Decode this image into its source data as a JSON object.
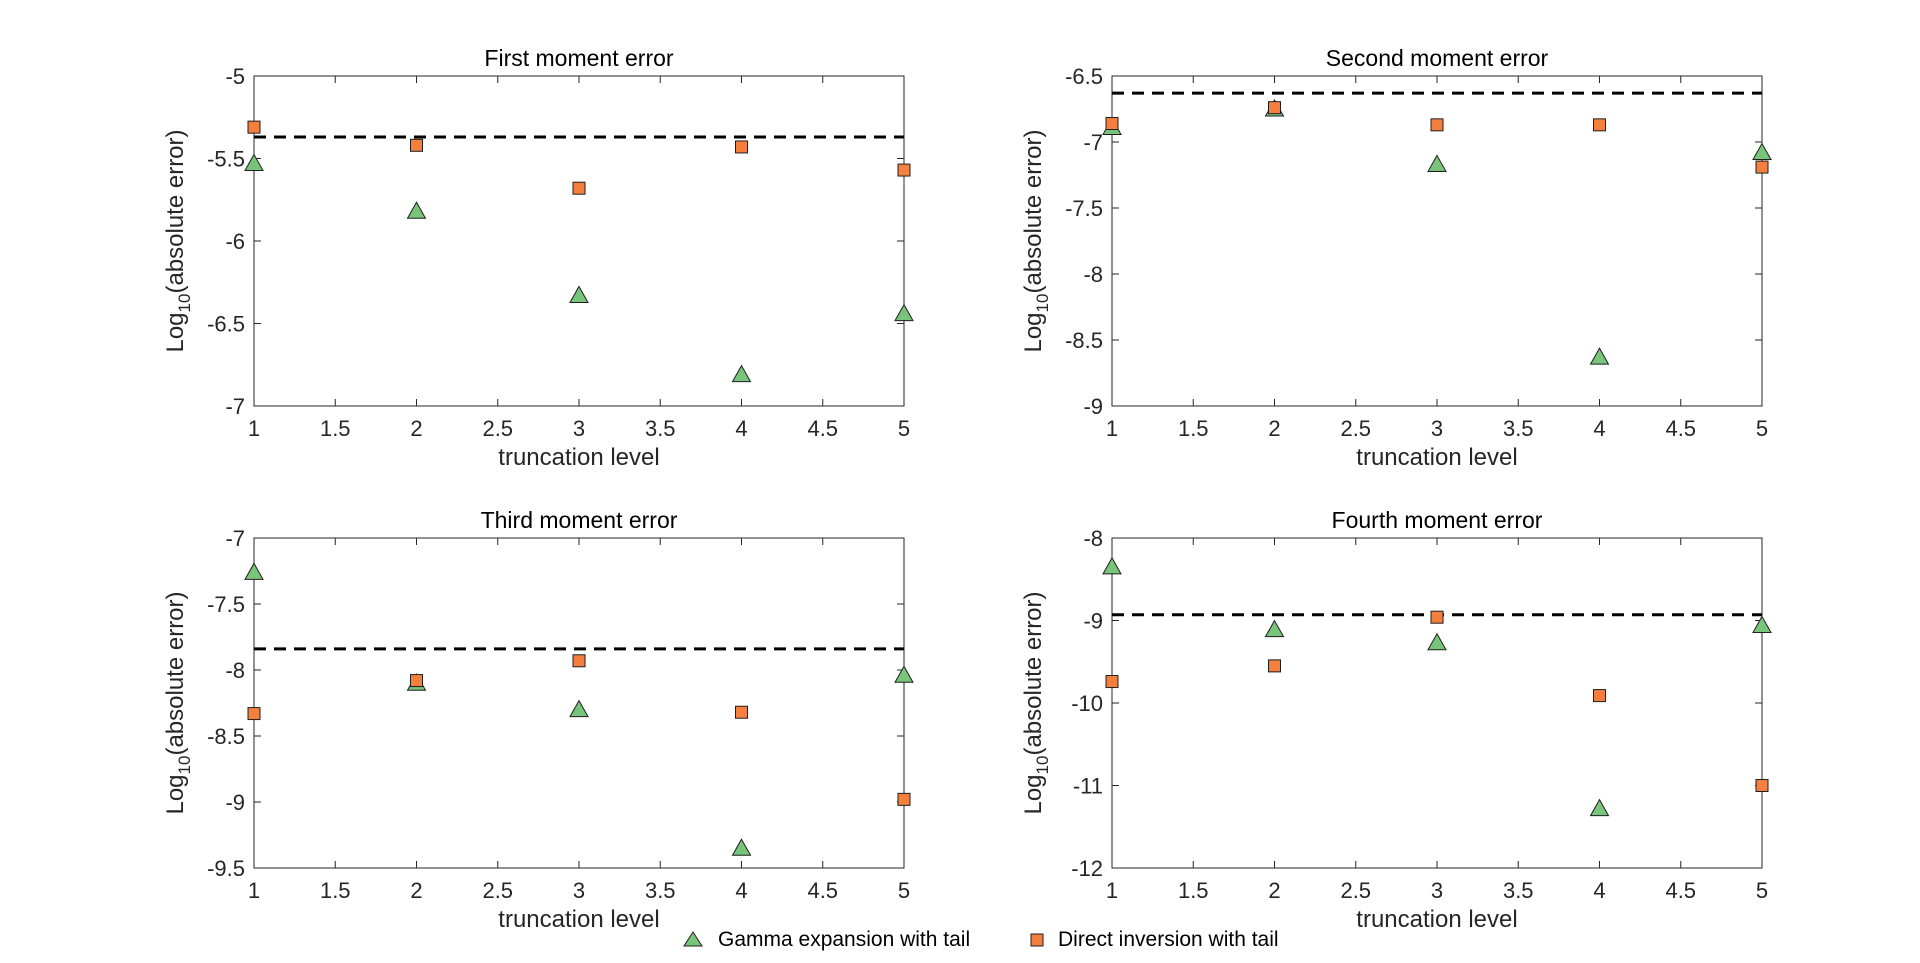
{
  "figure": {
    "legend": {
      "position": "bottom-center",
      "entries": [
        {
          "label": "Gamma expansion with tail",
          "marker": "triangle",
          "color": "#77c47a"
        },
        {
          "label": "Direct inversion with tail",
          "marker": "square",
          "color": "#f5803e"
        }
      ]
    }
  },
  "chart_data": [
    {
      "type": "scatter",
      "title": "First moment error",
      "xlabel": "truncation level",
      "ylabel_prefix": "Log",
      "ylabel_sub": "10",
      "ylabel_suffix": "(absolute error)",
      "xlim": [
        1,
        5
      ],
      "ylim": [
        -7,
        -5
      ],
      "xticks": [
        1,
        1.5,
        2,
        2.5,
        3,
        3.5,
        4,
        4.5,
        5
      ],
      "xtick_labels": [
        "1",
        "1.5",
        "2",
        "2.5",
        "3",
        "3.5",
        "4",
        "4.5",
        "5"
      ],
      "yticks": [
        -7,
        -6.5,
        -6,
        -5.5,
        -5
      ],
      "ytick_labels": [
        "-7",
        "-6.5",
        "-6",
        "-5.5",
        "-5"
      ],
      "reference_line": -5.37,
      "x": [
        1,
        2,
        3,
        4,
        5
      ],
      "series": [
        {
          "name": "Gamma expansion with tail",
          "marker": "triangle",
          "color": "#77c47a",
          "values": [
            -5.53,
            -5.82,
            -6.33,
            -6.81,
            -6.44
          ]
        },
        {
          "name": "Direct inversion with tail",
          "marker": "square",
          "color": "#f5803e",
          "values": [
            -5.31,
            -5.42,
            -5.68,
            -5.43,
            -5.57
          ]
        }
      ]
    },
    {
      "type": "scatter",
      "title": "Second moment error",
      "xlabel": "truncation level",
      "ylabel_prefix": "Log",
      "ylabel_sub": "10",
      "ylabel_suffix": "(absolute error)",
      "xlim": [
        1,
        5
      ],
      "ylim": [
        -9,
        -6.5
      ],
      "xticks": [
        1,
        1.5,
        2,
        2.5,
        3,
        3.5,
        4,
        4.5,
        5
      ],
      "xtick_labels": [
        "1",
        "1.5",
        "2",
        "2.5",
        "3",
        "3.5",
        "4",
        "4.5",
        "5"
      ],
      "yticks": [
        -9,
        -8.5,
        -8,
        -7.5,
        -7,
        -6.5
      ],
      "ytick_labels": [
        "-9",
        "-8.5",
        "-8",
        "-7.5",
        "-7",
        "-6.5"
      ],
      "reference_line": -6.63,
      "x": [
        1,
        2,
        3,
        4,
        5
      ],
      "series": [
        {
          "name": "Gamma expansion with tail",
          "marker": "triangle",
          "color": "#77c47a",
          "values": [
            -6.89,
            -6.75,
            -7.17,
            -8.63,
            -7.08
          ]
        },
        {
          "name": "Direct inversion with tail",
          "marker": "square",
          "color": "#f5803e",
          "values": [
            -6.86,
            -6.74,
            -6.87,
            -6.87,
            -7.19
          ]
        }
      ]
    },
    {
      "type": "scatter",
      "title": "Third moment error",
      "xlabel": "truncation level",
      "ylabel_prefix": "Log",
      "ylabel_sub": "10",
      "ylabel_suffix": "(absolute error)",
      "xlim": [
        1,
        5
      ],
      "ylim": [
        -9.5,
        -7
      ],
      "xticks": [
        1,
        1.5,
        2,
        2.5,
        3,
        3.5,
        4,
        4.5,
        5
      ],
      "xtick_labels": [
        "1",
        "1.5",
        "2",
        "2.5",
        "3",
        "3.5",
        "4",
        "4.5",
        "5"
      ],
      "yticks": [
        -9.5,
        -9,
        -8.5,
        -8,
        -7.5,
        -7
      ],
      "ytick_labels": [
        "-9.5",
        "-9",
        "-8.5",
        "-8",
        "-7.5",
        "-7"
      ],
      "reference_line": -7.84,
      "x": [
        1,
        2,
        3,
        4,
        5
      ],
      "series": [
        {
          "name": "Gamma expansion with tail",
          "marker": "triangle",
          "color": "#77c47a",
          "values": [
            -7.26,
            -8.1,
            -8.3,
            -9.35,
            -8.04
          ]
        },
        {
          "name": "Direct inversion with tail",
          "marker": "square",
          "color": "#f5803e",
          "values": [
            -8.33,
            -8.08,
            -7.93,
            -8.32,
            -8.98
          ]
        }
      ]
    },
    {
      "type": "scatter",
      "title": "Fourth moment error",
      "xlabel": "truncation level",
      "ylabel_prefix": "Log",
      "ylabel_sub": "10",
      "ylabel_suffix": "(absolute error)",
      "xlim": [
        1,
        5
      ],
      "ylim": [
        -12,
        -8
      ],
      "xticks": [
        1,
        1.5,
        2,
        2.5,
        3,
        3.5,
        4,
        4.5,
        5
      ],
      "xtick_labels": [
        "1",
        "1.5",
        "2",
        "2.5",
        "3",
        "3.5",
        "4",
        "4.5",
        "5"
      ],
      "yticks": [
        -12,
        -11,
        -10,
        -9,
        -8
      ],
      "ytick_labels": [
        "-12",
        "-11",
        "-10",
        "-9",
        "-8"
      ],
      "reference_line": -8.93,
      "x": [
        1,
        2,
        3,
        4,
        5
      ],
      "series": [
        {
          "name": "Gamma expansion with tail",
          "marker": "triangle",
          "color": "#77c47a",
          "values": [
            -8.35,
            -9.11,
            -9.27,
            -11.28,
            -9.06
          ]
        },
        {
          "name": "Direct inversion with tail",
          "marker": "square",
          "color": "#f5803e",
          "values": [
            -9.74,
            -9.55,
            -8.96,
            -9.91,
            -11.0
          ]
        }
      ]
    }
  ]
}
